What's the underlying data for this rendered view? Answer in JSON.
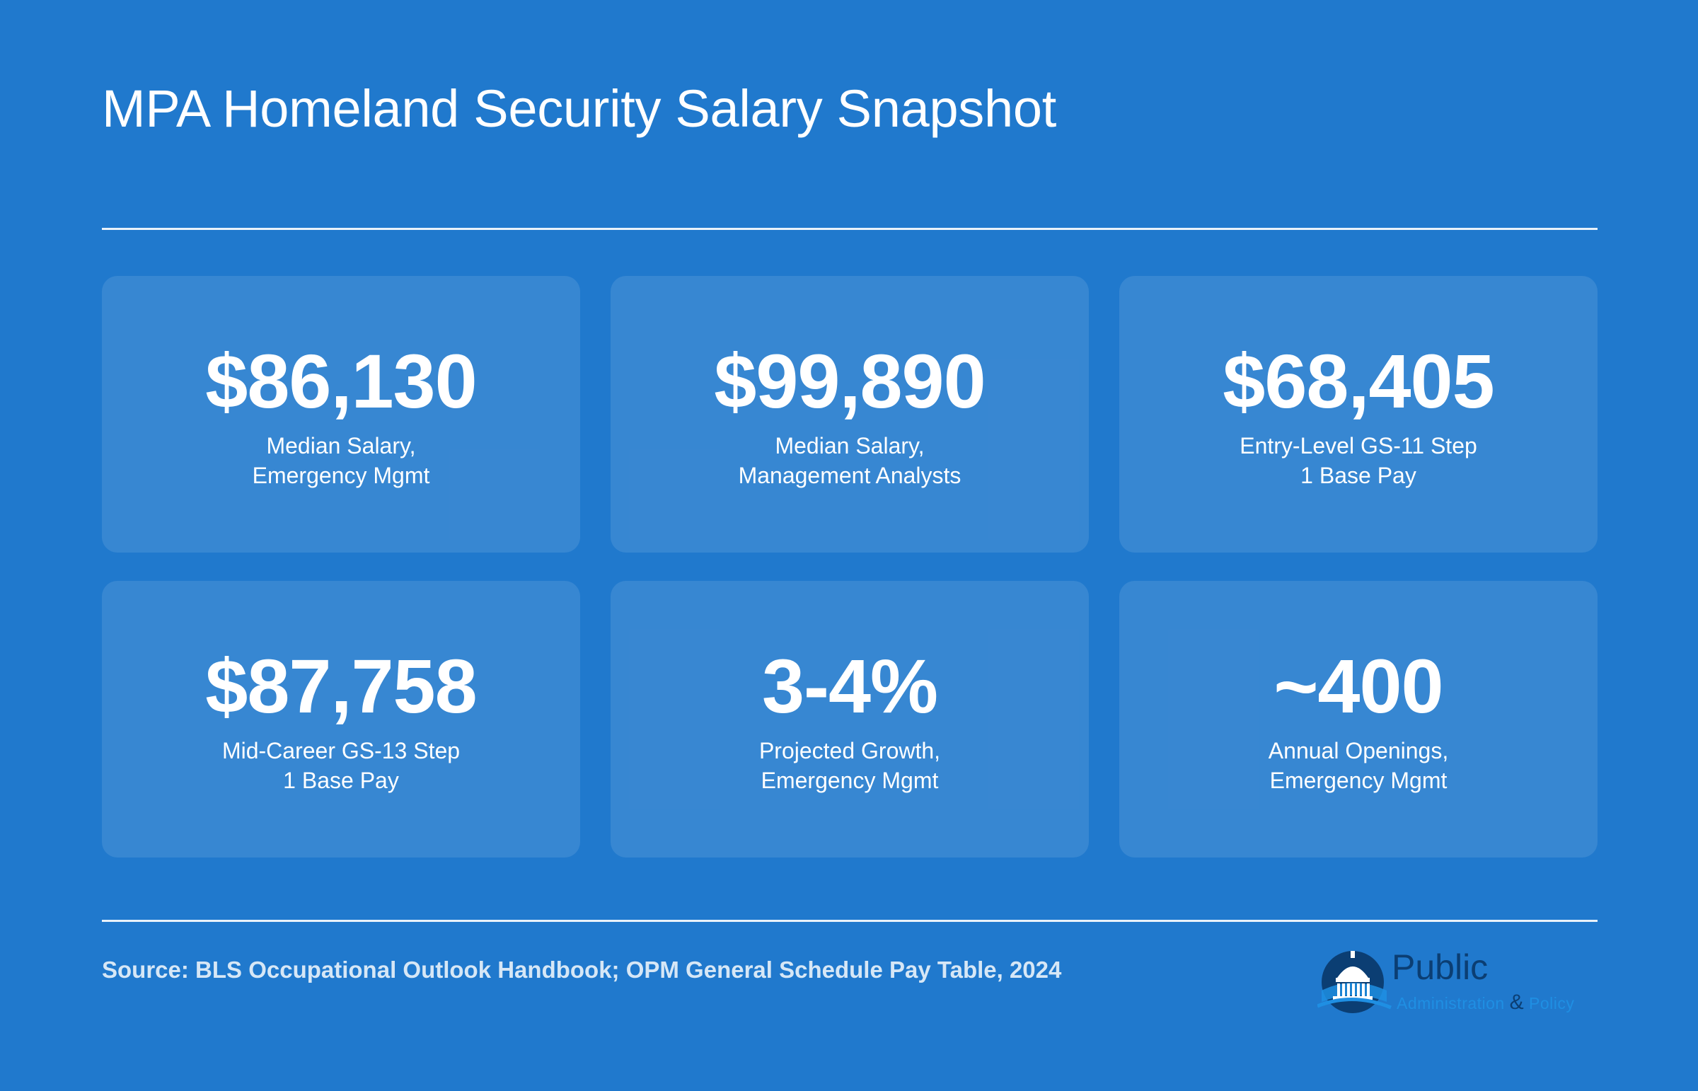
{
  "header": {
    "title": "MPA Homeland Security Salary Snapshot"
  },
  "stats": [
    {
      "value": "$86,130",
      "label_lines": [
        "Median Salary,",
        "Emergency Mgmt"
      ]
    },
    {
      "value": "$99,890",
      "label_lines": [
        "Median Salary,",
        "Management Analysts"
      ]
    },
    {
      "value": "$68,405",
      "label_lines": [
        "Entry-Level GS-11 Step",
        "1 Base Pay"
      ]
    },
    {
      "value": "$87,758",
      "label_lines": [
        "Mid-Career GS-13 Step",
        "1 Base Pay"
      ]
    },
    {
      "value": "3-4%",
      "label_lines": [
        "Projected Growth,",
        "Emergency Mgmt"
      ]
    },
    {
      "value": "~400",
      "label_lines": [
        "Annual Openings,",
        "Emergency Mgmt"
      ]
    }
  ],
  "footer": {
    "source": "Source: BLS Occupational Outlook Handbook; OPM General Schedule Pay Table, 2024"
  },
  "logo": {
    "word": "Public",
    "tagline_left": "Administration",
    "tagline_amp": "&",
    "tagline_right": "Policy",
    "icon": "capitol-dome-icon"
  },
  "colors": {
    "background": "#2079cd",
    "card": "rgba(255,255,255,0.105)",
    "text": "#ffffff",
    "logo_dark": "#0b3e73",
    "logo_light": "#1f8fe3"
  }
}
